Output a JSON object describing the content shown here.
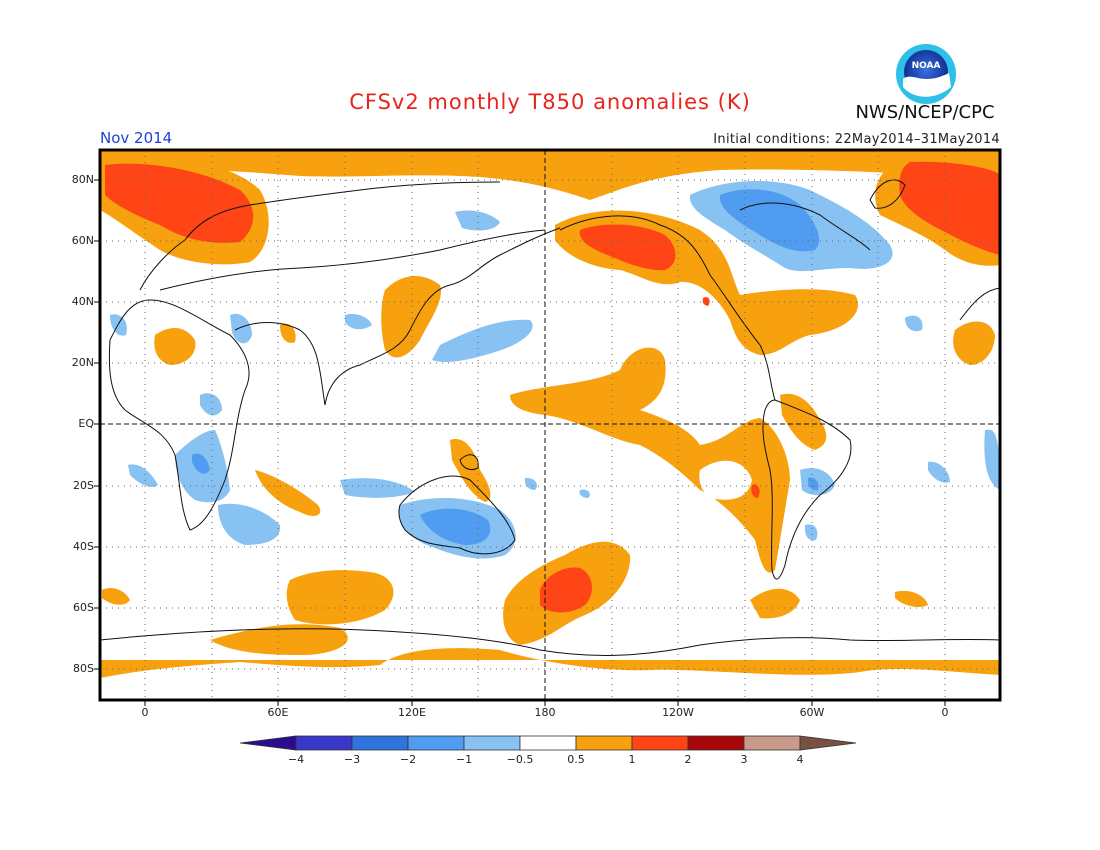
{
  "title": "CFSv2 monthly T850 anomalies (K)",
  "valid_month": "Nov 2014",
  "initial_conditions": "Initial conditions: 22May2014–31May2014",
  "agency": "NWS/NCEP/CPC",
  "logo_text": "NOAA",
  "lat_labels": [
    "80N",
    "60N",
    "40N",
    "20N",
    "EQ",
    "20S",
    "40S",
    "60S",
    "80S"
  ],
  "lon_labels": [
    "0",
    "60E",
    "120E",
    "180",
    "120W",
    "60W",
    "0"
  ],
  "colorbar": {
    "labels": [
      "−4",
      "−3",
      "−2",
      "−1",
      "−0.5",
      "0.5",
      "1",
      "2",
      "3",
      "4"
    ],
    "colors": [
      "#2a0c8f",
      "#3a38c8",
      "#2e74dc",
      "#4f9cf0",
      "#88c2f2",
      "#ffffff",
      "#f8a10e",
      "#ff4416",
      "#a8080a",
      "#c9998a",
      "#7a5040"
    ]
  },
  "colors": {
    "warm1": "#f8a10e",
    "warm2": "#ff4416",
    "cool1": "#88c2f2",
    "cool2": "#4f9cf0",
    "cool3": "#2e74dc"
  }
}
